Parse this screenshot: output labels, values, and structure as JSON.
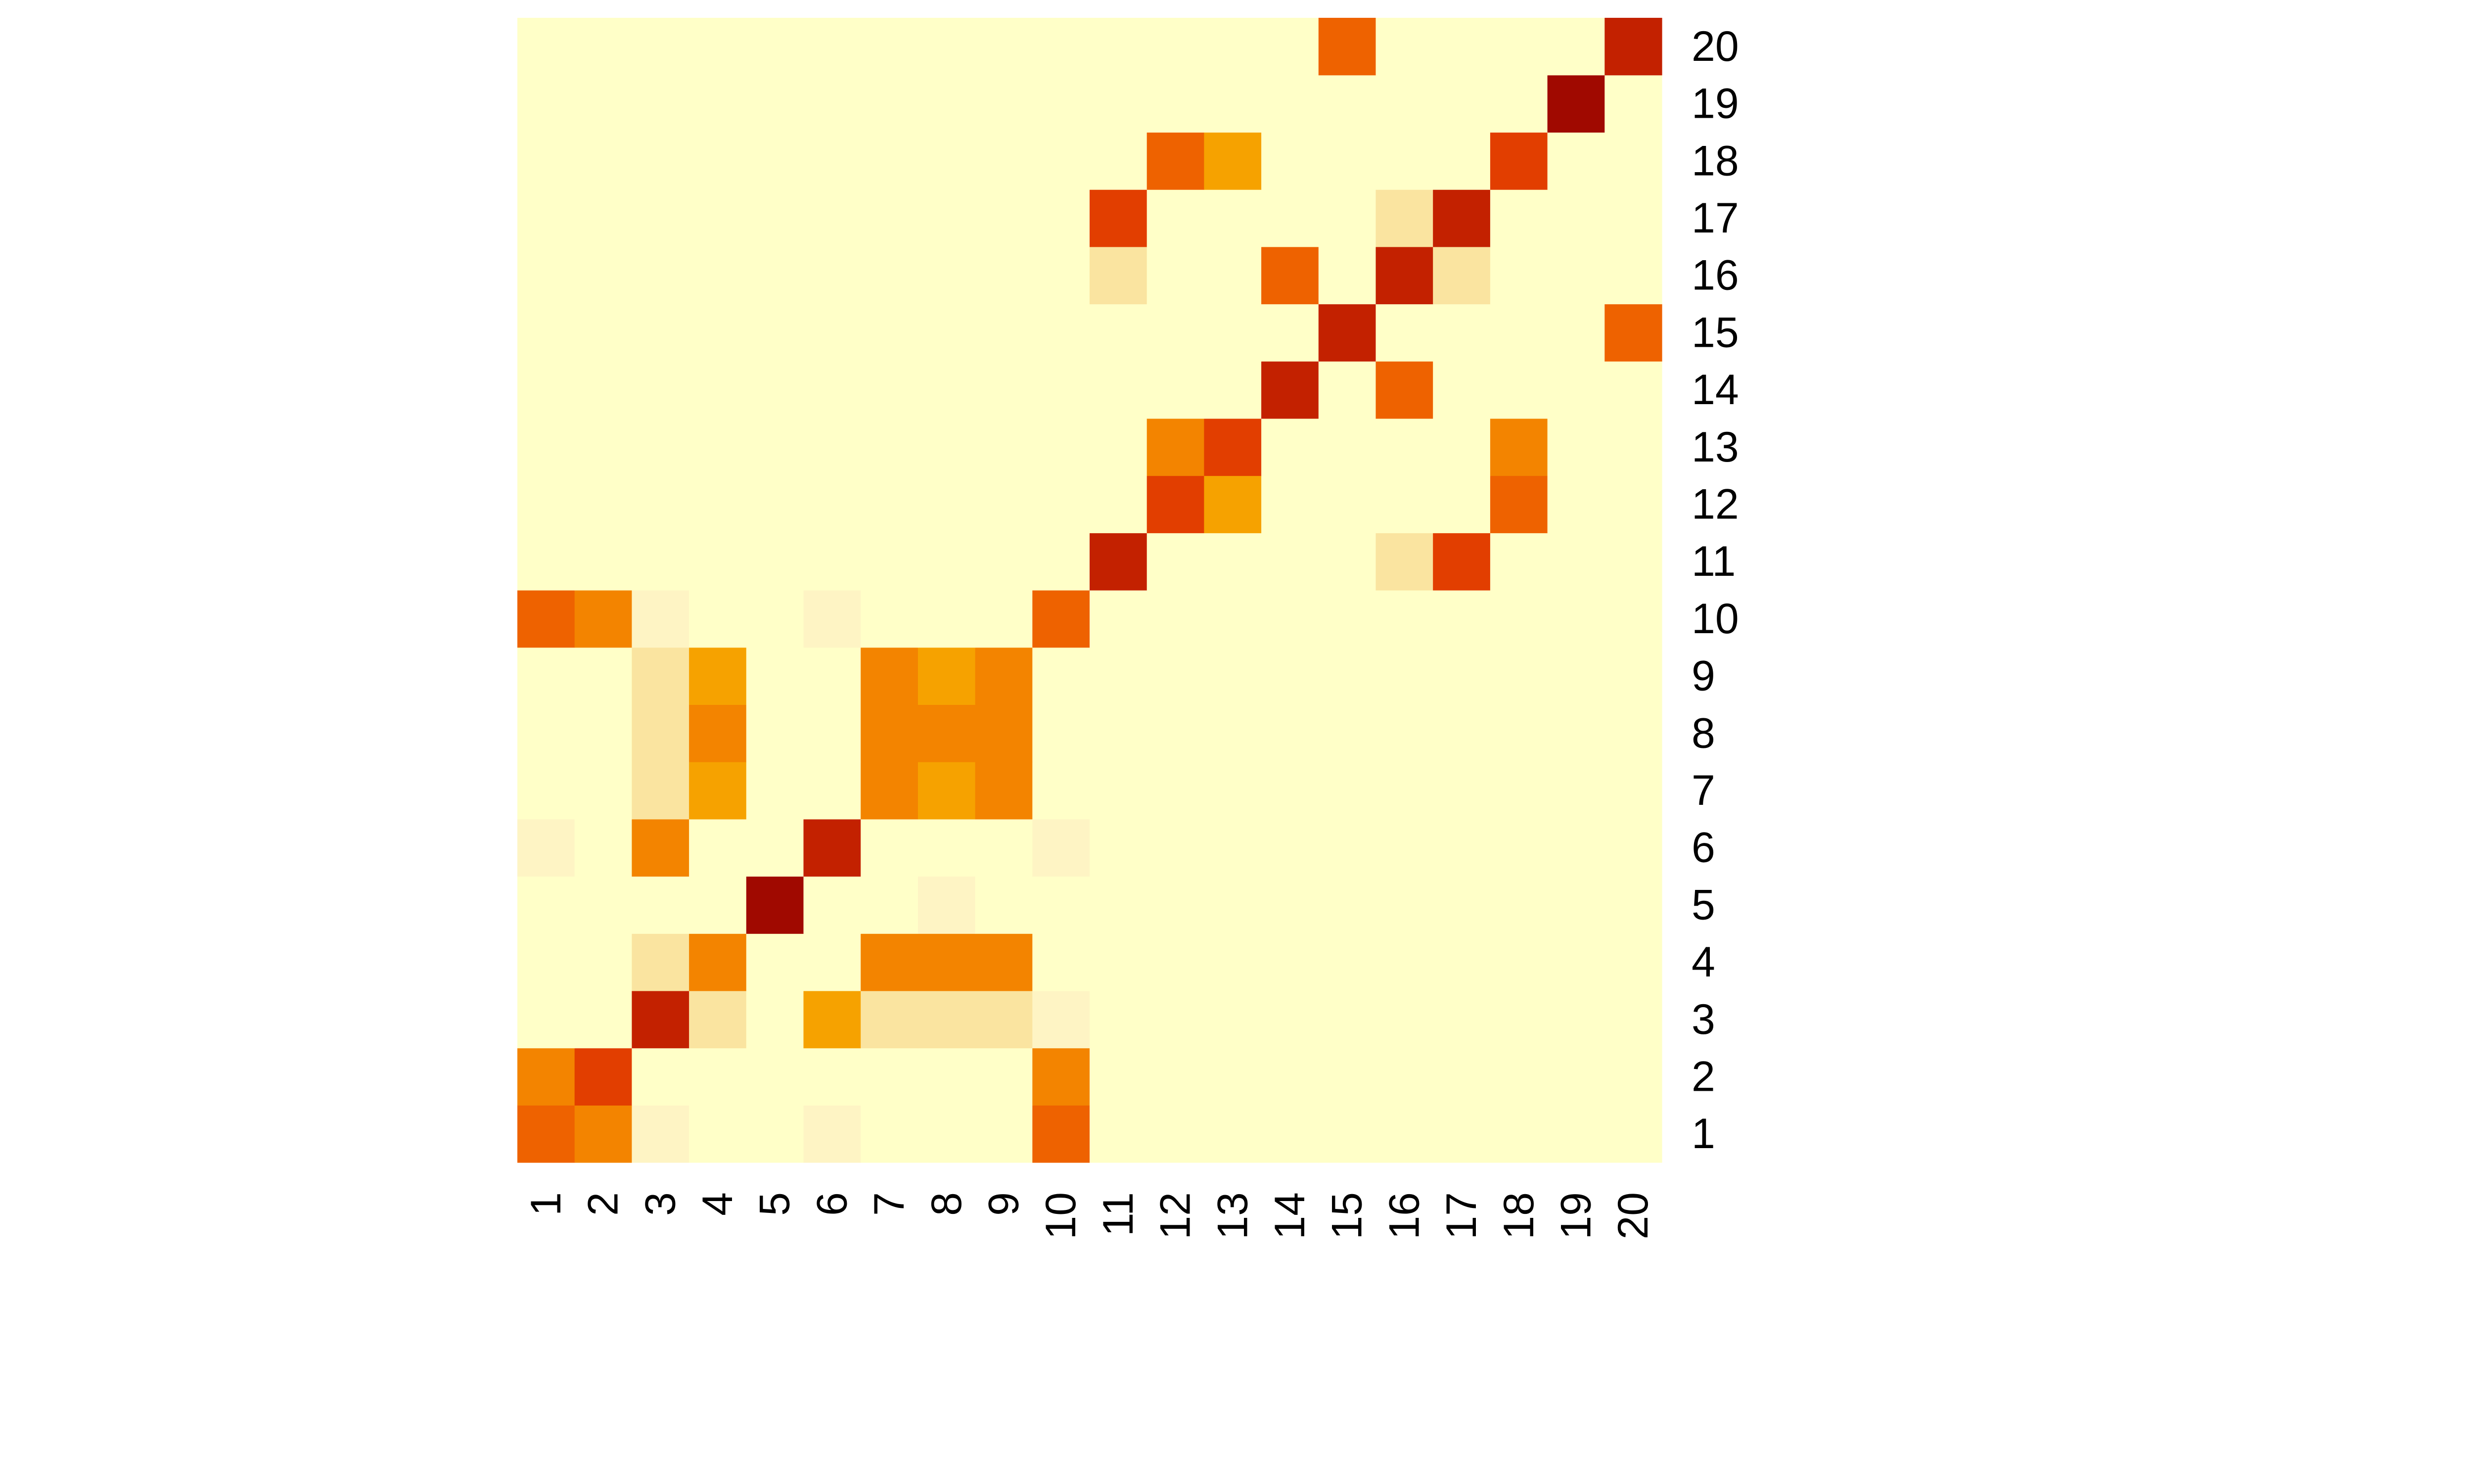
{
  "chart_data": {
    "type": "heatmap",
    "title": "",
    "xlabel": "",
    "ylabel": "",
    "x_labels": [
      "1",
      "2",
      "3",
      "4",
      "5",
      "6",
      "7",
      "8",
      "9",
      "10",
      "11",
      "12",
      "13",
      "14",
      "15",
      "16",
      "17",
      "18",
      "19",
      "20"
    ],
    "y_labels": [
      "1",
      "2",
      "3",
      "4",
      "5",
      "6",
      "7",
      "8",
      "9",
      "10",
      "11",
      "12",
      "13",
      "14",
      "15",
      "16",
      "17",
      "18",
      "19",
      "20"
    ],
    "value_range": [
      0,
      11
    ],
    "palette": [
      "#FFFFC8",
      "#FEF4C4",
      "#FAE4A0",
      "#F6A200",
      "#F38400",
      "#EE6200",
      "#E23E00",
      "#C32100",
      "#A00900",
      "#7D0025"
    ],
    "matrix": [
      [
        6,
        5,
        1,
        0,
        0,
        1,
        0,
        0,
        0,
        6,
        0,
        0,
        0,
        0,
        0,
        0,
        0,
        0,
        0,
        0
      ],
      [
        5,
        7,
        0,
        0,
        0,
        0,
        0,
        0,
        0,
        5,
        0,
        0,
        0,
        0,
        0,
        0,
        0,
        0,
        0,
        0
      ],
      [
        0,
        0,
        8,
        2,
        0,
        4,
        2,
        2,
        2,
        1,
        0,
        0,
        0,
        0,
        0,
        0,
        0,
        0,
        0,
        0
      ],
      [
        0,
        0,
        2,
        5,
        0,
        0,
        5,
        5,
        5,
        0,
        0,
        0,
        0,
        0,
        0,
        0,
        0,
        0,
        0,
        0
      ],
      [
        0,
        0,
        0,
        0,
        10,
        0,
        0,
        1,
        0,
        0,
        0,
        0,
        0,
        0,
        0,
        0,
        0,
        0,
        0,
        0
      ],
      [
        1,
        0,
        5,
        0,
        0,
        9,
        0,
        0,
        0,
        1,
        0,
        0,
        0,
        0,
        0,
        0,
        0,
        0,
        0,
        0
      ],
      [
        0,
        0,
        2,
        4,
        0,
        0,
        5,
        4,
        5,
        0,
        0,
        0,
        0,
        0,
        0,
        0,
        0,
        0,
        0,
        0
      ],
      [
        0,
        0,
        2,
        5,
        0,
        0,
        5,
        5,
        5,
        0,
        0,
        0,
        0,
        0,
        0,
        0,
        0,
        0,
        0,
        0
      ],
      [
        0,
        0,
        2,
        4,
        0,
        0,
        5,
        4,
        5,
        0,
        0,
        0,
        0,
        0,
        0,
        0,
        0,
        0,
        0,
        0
      ],
      [
        6,
        5,
        1,
        0,
        0,
        1,
        0,
        0,
        0,
        6,
        0,
        0,
        0,
        0,
        0,
        0,
        0,
        0,
        0,
        0
      ],
      [
        0,
        0,
        0,
        0,
        0,
        0,
        0,
        0,
        0,
        0,
        8,
        0,
        0,
        0,
        0,
        2,
        7,
        0,
        0,
        0
      ],
      [
        0,
        0,
        0,
        0,
        0,
        0,
        0,
        0,
        0,
        0,
        0,
        7,
        4,
        0,
        0,
        0,
        0,
        6,
        0,
        0
      ],
      [
        0,
        0,
        0,
        0,
        0,
        0,
        0,
        0,
        0,
        0,
        0,
        5,
        7,
        0,
        0,
        0,
        0,
        5,
        0,
        0
      ],
      [
        0,
        0,
        0,
        0,
        0,
        0,
        0,
        0,
        0,
        0,
        0,
        0,
        0,
        8,
        0,
        6,
        0,
        0,
        0,
        0
      ],
      [
        0,
        0,
        0,
        0,
        0,
        0,
        0,
        0,
        0,
        0,
        0,
        0,
        0,
        0,
        8,
        0,
        0,
        0,
        0,
        6
      ],
      [
        0,
        0,
        0,
        0,
        0,
        0,
        0,
        0,
        0,
        0,
        2,
        0,
        0,
        6,
        0,
        8,
        2,
        0,
        0,
        0
      ],
      [
        0,
        0,
        0,
        0,
        0,
        0,
        0,
        0,
        0,
        0,
        7,
        0,
        0,
        0,
        0,
        2,
        8,
        0,
        0,
        0
      ],
      [
        0,
        0,
        0,
        0,
        0,
        0,
        0,
        0,
        0,
        0,
        0,
        6,
        4,
        0,
        0,
        0,
        0,
        7,
        0,
        0
      ],
      [
        0,
        0,
        0,
        0,
        0,
        0,
        0,
        0,
        0,
        0,
        0,
        0,
        0,
        0,
        0,
        0,
        0,
        0,
        10,
        0
      ],
      [
        0,
        0,
        0,
        0,
        0,
        0,
        0,
        0,
        0,
        0,
        0,
        0,
        0,
        0,
        6,
        0,
        0,
        0,
        0,
        8
      ]
    ],
    "legend": "none",
    "grid": false
  }
}
